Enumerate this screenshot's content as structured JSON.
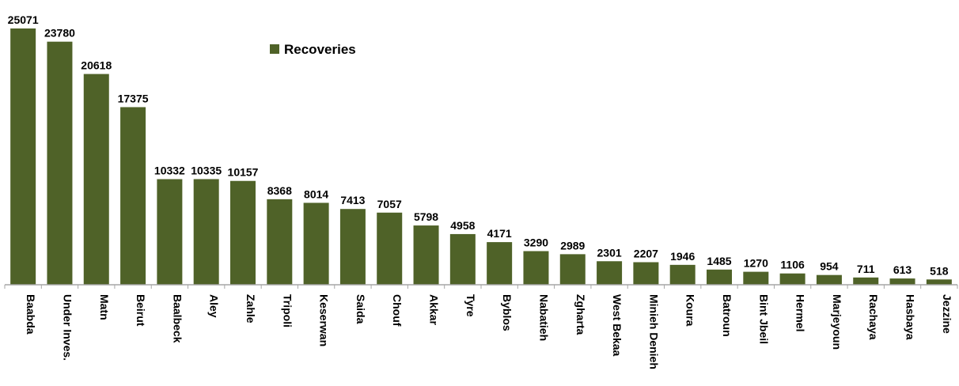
{
  "chart_data": {
    "type": "bar",
    "categories": [
      "Baabda",
      "Under Inves.",
      "Matn",
      "Beirut",
      "Baalbeck",
      "Aley",
      "Zahle",
      "Tripoli",
      "Keserwan",
      "Saida",
      "Chouf",
      "Akkar",
      "Tyre",
      "Byblos",
      "Nabatieh",
      "Zgharta",
      "West Bekaa",
      "Minieh Denieh",
      "Koura",
      "Batroun",
      "Bint Jbeil",
      "Hermel",
      "Marjeyoun",
      "Rachaya",
      "Hasbaya",
      "Jezzine"
    ],
    "series": [
      {
        "name": "Recoveries",
        "values": [
          25071,
          23780,
          20618,
          17375,
          10332,
          10335,
          10157,
          8368,
          8014,
          7413,
          7057,
          5798,
          4958,
          4171,
          3290,
          2989,
          2301,
          2207,
          1946,
          1485,
          1270,
          1106,
          954,
          711,
          613,
          518
        ]
      }
    ],
    "data_labels": [
      "25071",
      "23780",
      "20618",
      "17375",
      "10332",
      "10335",
      "10157",
      "8368",
      "8014",
      "7413",
      "7057",
      "5798",
      "4958",
      "4171",
      "3290",
      "2989",
      "2301",
      "2207",
      "1946",
      "1485",
      "1270",
      "1106",
      "954",
      "711",
      "613",
      "518"
    ],
    "legend": {
      "label": "Recoveries",
      "position": "top-center"
    },
    "bar_color": "#4F6228",
    "axis_color": "#A6A6A6",
    "ylim": [
      0,
      25071
    ],
    "grid": false,
    "title": "",
    "xlabel": "",
    "ylabel": ""
  }
}
